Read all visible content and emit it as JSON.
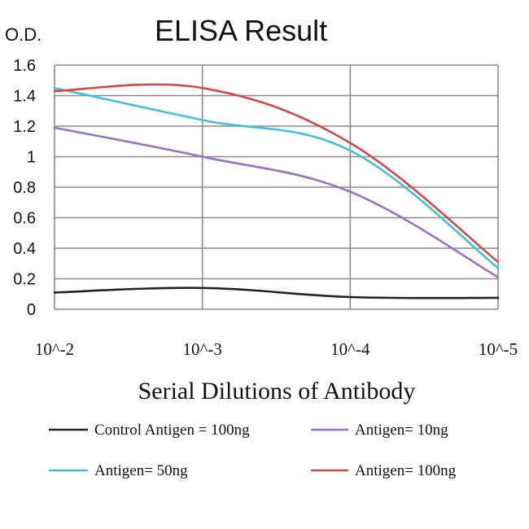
{
  "chart_data": {
    "type": "line",
    "title": "ELISA Result",
    "ylabel": "O.D.",
    "xlabel": "Serial Dilutions of Antibody",
    "categories": [
      "10^-2",
      "10^-3",
      "10^-4",
      "10^-5"
    ],
    "ylim": [
      0,
      1.6
    ],
    "yticks": [
      "0",
      "0.2",
      "0.4",
      "0.6",
      "0.8",
      "1",
      "1.2",
      "1.4",
      "1.6"
    ],
    "grid": true,
    "legend_position": "bottom",
    "series": [
      {
        "name": "Control Antigen = 100ng",
        "color": "#222222",
        "values": [
          0.11,
          0.14,
          0.08,
          0.075
        ]
      },
      {
        "name": "Antigen= 10ng",
        "color": "#9b6fc2",
        "values": [
          1.19,
          1.0,
          0.77,
          0.21
        ]
      },
      {
        "name": "Antigen= 50ng",
        "color": "#3fc0da",
        "values": [
          1.45,
          1.24,
          1.04,
          0.27
        ]
      },
      {
        "name": "Antigen= 100ng",
        "color": "#d64545",
        "values": [
          1.43,
          1.45,
          1.09,
          0.31
        ]
      }
    ]
  }
}
